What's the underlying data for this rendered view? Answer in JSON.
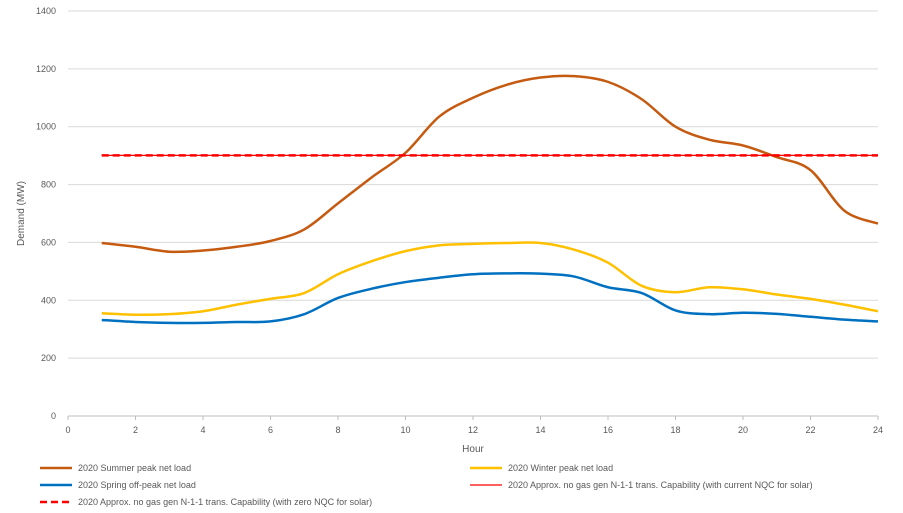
{
  "chart_data": {
    "type": "line",
    "title": "",
    "xlabel": "Hour",
    "ylabel": "Demand (MW)",
    "xlim": [
      0,
      24
    ],
    "ylim": [
      0,
      1400
    ],
    "x_ticks": [
      0,
      2,
      4,
      6,
      8,
      10,
      12,
      14,
      16,
      18,
      20,
      22,
      24
    ],
    "y_ticks": [
      0,
      200,
      400,
      600,
      800,
      1000,
      1200,
      1400
    ],
    "grid": "horizontal",
    "legend_position": "bottom",
    "x": [
      1,
      2,
      3,
      4,
      5,
      6,
      7,
      8,
      9,
      10,
      11,
      12,
      13,
      14,
      15,
      16,
      17,
      18,
      19,
      20,
      21,
      22,
      23,
      24
    ],
    "series": [
      {
        "name": "2020 Summer peak net load",
        "color": "#C55A11",
        "style": "solid",
        "values": [
          598,
          585,
          568,
          572,
          585,
          605,
          645,
          735,
          825,
          910,
          1035,
          1100,
          1145,
          1170,
          1175,
          1155,
          1095,
          1000,
          955,
          935,
          895,
          850,
          710,
          665
        ]
      },
      {
        "name": "2020 Winter peak net load",
        "color": "#FFC000",
        "style": "solid",
        "values": [
          355,
          350,
          352,
          362,
          385,
          405,
          425,
          490,
          535,
          570,
          590,
          595,
          598,
          598,
          575,
          530,
          450,
          428,
          445,
          438,
          420,
          405,
          385,
          362
        ]
      },
      {
        "name": "2020 Spring off-peak net load",
        "color": "#0070C0",
        "style": "solid",
        "values": [
          332,
          325,
          322,
          322,
          325,
          327,
          352,
          408,
          440,
          463,
          478,
          490,
          493,
          492,
          482,
          445,
          425,
          365,
          352,
          357,
          353,
          343,
          333,
          327
        ]
      },
      {
        "name": "2020 Approx. no gas gen N-1-1 trans. Capability (with current NQC for solar)",
        "color": "#FF0000",
        "style": "solid-thin",
        "values": [
          901,
          901,
          901,
          901,
          901,
          901,
          901,
          901,
          901,
          901,
          901,
          901,
          901,
          901,
          901,
          901,
          901,
          901,
          901,
          901,
          901,
          901,
          901,
          901
        ]
      },
      {
        "name": "2020 Approx. no gas gen N-1-1 trans. Capability (with zero NQC for solar)",
        "color": "#FF0000",
        "style": "dashed",
        "values": [
          901,
          901,
          901,
          901,
          901,
          901,
          901,
          901,
          901,
          901,
          901,
          901,
          901,
          901,
          901,
          901,
          901,
          901,
          901,
          901,
          901,
          901,
          901,
          901
        ]
      }
    ],
    "legend": [
      {
        "label": "2020 Summer peak net load",
        "series": 0
      },
      {
        "label": "2020 Winter peak net load",
        "series": 1
      },
      {
        "label": "2020 Spring off-peak net load",
        "series": 2
      },
      {
        "label": "2020 Approx. no gas gen N-1-1 trans. Capability (with current NQC for solar)",
        "series": 3
      },
      {
        "label": "2020 Approx. no gas gen N-1-1 trans. Capability (with zero NQC for solar)",
        "series": 4
      }
    ]
  }
}
